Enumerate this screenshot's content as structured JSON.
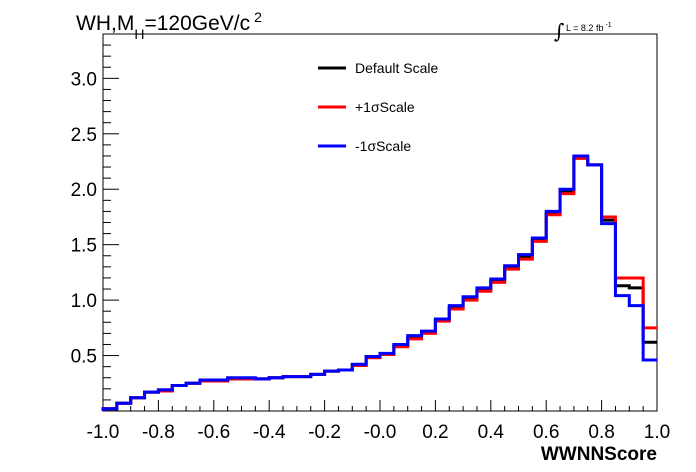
{
  "chart_data": {
    "type": "line",
    "title": {
      "main_before_sub": "WH,M",
      "subscript": "H",
      "main_after_sub": "=120GeV/c",
      "superscript": "2"
    },
    "luminosity": {
      "integral_symbol": "∫",
      "text": "L = 8.2 fb",
      "superscript": "-1"
    },
    "xlabel": "WWNNScore",
    "ylabel": "",
    "xlim": [
      -1.0,
      1.0
    ],
    "ylim": [
      0,
      3.4
    ],
    "x_ticks": [
      "-1.0",
      "-0.8",
      "-0.6",
      "-0.4",
      "-0.2",
      "-0.0",
      "0.2",
      "0.4",
      "0.6",
      "0.8",
      "1.0"
    ],
    "y_ticks": [
      "0.5",
      "1.0",
      "1.5",
      "2.0",
      "2.5",
      "3.0"
    ],
    "grid": false,
    "legend_placement": "top-center",
    "bin_edges": [
      -1.0,
      -0.95,
      -0.9,
      -0.85,
      -0.8,
      -0.75,
      -0.7,
      -0.65,
      -0.6,
      -0.55,
      -0.5,
      -0.45,
      -0.4,
      -0.35,
      -0.3,
      -0.25,
      -0.2,
      -0.15,
      -0.1,
      -0.05,
      0.0,
      0.05,
      0.1,
      0.15,
      0.2,
      0.25,
      0.3,
      0.35,
      0.4,
      0.45,
      0.5,
      0.55,
      0.6,
      0.65,
      0.7,
      0.75,
      0.8,
      0.85,
      0.9,
      0.95,
      1.0
    ],
    "series": [
      {
        "name": "Default Scale",
        "color": "#000000",
        "values": [
          0.02,
          0.07,
          0.12,
          0.17,
          0.19,
          0.23,
          0.25,
          0.27,
          0.27,
          0.29,
          0.29,
          0.29,
          0.3,
          0.31,
          0.31,
          0.33,
          0.36,
          0.37,
          0.42,
          0.49,
          0.51,
          0.59,
          0.66,
          0.71,
          0.82,
          0.93,
          1.01,
          1.09,
          1.17,
          1.29,
          1.39,
          1.54,
          1.78,
          1.98,
          2.28,
          2.22,
          1.72,
          1.13,
          1.11,
          0.62
        ]
      },
      {
        "name": "+1σScale",
        "color": "#ff0000",
        "values": [
          0.02,
          0.07,
          0.12,
          0.17,
          0.18,
          0.23,
          0.25,
          0.27,
          0.27,
          0.29,
          0.29,
          0.29,
          0.3,
          0.31,
          0.31,
          0.33,
          0.36,
          0.37,
          0.41,
          0.48,
          0.51,
          0.58,
          0.65,
          0.7,
          0.81,
          0.92,
          1.0,
          1.08,
          1.16,
          1.28,
          1.37,
          1.53,
          1.77,
          1.96,
          2.28,
          2.22,
          1.75,
          1.2,
          1.2,
          0.75
        ]
      },
      {
        "name": "-1σScale",
        "color": "#0000ff",
        "values": [
          0.02,
          0.07,
          0.12,
          0.17,
          0.19,
          0.23,
          0.25,
          0.28,
          0.28,
          0.3,
          0.3,
          0.29,
          0.3,
          0.31,
          0.31,
          0.33,
          0.36,
          0.37,
          0.42,
          0.49,
          0.52,
          0.6,
          0.68,
          0.72,
          0.83,
          0.95,
          1.03,
          1.11,
          1.19,
          1.31,
          1.41,
          1.56,
          1.8,
          2.0,
          2.3,
          2.22,
          1.69,
          1.04,
          0.95,
          0.46
        ]
      }
    ]
  }
}
